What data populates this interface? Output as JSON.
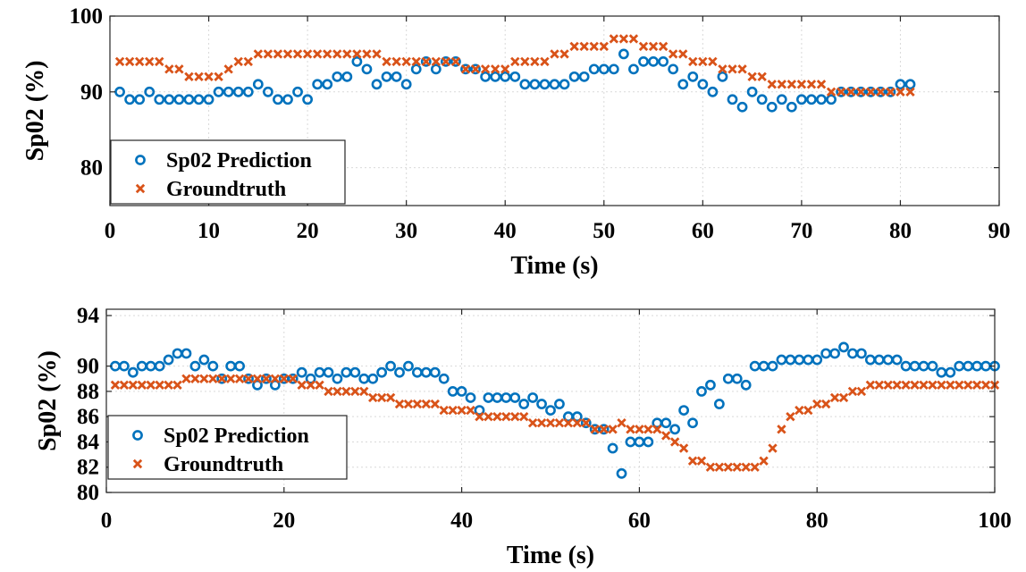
{
  "colors": {
    "prediction": "#0072BD",
    "groundtruth": "#D95319"
  },
  "chart_data": [
    {
      "type": "scatter",
      "xlabel": "Time (s)",
      "ylabel": "Sp02 (%)",
      "xlim": [
        0,
        90
      ],
      "ylim": [
        75,
        100
      ],
      "xticks": [
        0,
        10,
        20,
        30,
        40,
        50,
        60,
        70,
        80,
        90
      ],
      "yticks": [
        80,
        90,
        100
      ],
      "grid": true,
      "legend": "bottom-left",
      "series": [
        {
          "name": "Sp02 Prediction",
          "marker": "circle",
          "x": [
            1,
            2,
            3,
            4,
            5,
            6,
            7,
            8,
            9,
            10,
            11,
            12,
            13,
            14,
            15,
            16,
            17,
            18,
            19,
            20,
            21,
            22,
            23,
            24,
            25,
            26,
            27,
            28,
            29,
            30,
            31,
            32,
            33,
            34,
            35,
            36,
            37,
            38,
            39,
            40,
            41,
            42,
            43,
            44,
            45,
            46,
            47,
            48,
            49,
            50,
            51,
            52,
            53,
            54,
            55,
            56,
            57,
            58,
            59,
            60,
            61,
            62,
            63,
            64,
            65,
            66,
            67,
            68,
            69,
            70,
            71,
            72,
            73,
            74,
            75,
            76,
            77,
            78,
            79,
            80,
            81
          ],
          "y": [
            90,
            89,
            89,
            90,
            89,
            89,
            89,
            89,
            89,
            89,
            90,
            90,
            90,
            90,
            91,
            90,
            89,
            89,
            90,
            89,
            91,
            91,
            92,
            92,
            94,
            93,
            91,
            92,
            92,
            91,
            93,
            94,
            93,
            94,
            94,
            93,
            93,
            92,
            92,
            92,
            92,
            91,
            91,
            91,
            91,
            91,
            92,
            92,
            93,
            93,
            93,
            95,
            93,
            94,
            94,
            94,
            93,
            91,
            92,
            91,
            90,
            92,
            89,
            88,
            90,
            89,
            88,
            89,
            88,
            89,
            89,
            89,
            89,
            90,
            90,
            90,
            90,
            90,
            90,
            91,
            91
          ]
        },
        {
          "name": "Groundtruth",
          "marker": "x",
          "x": [
            1,
            2,
            3,
            4,
            5,
            6,
            7,
            8,
            9,
            10,
            11,
            12,
            13,
            14,
            15,
            16,
            17,
            18,
            19,
            20,
            21,
            22,
            23,
            24,
            25,
            26,
            27,
            28,
            29,
            30,
            31,
            32,
            33,
            34,
            35,
            36,
            37,
            38,
            39,
            40,
            41,
            42,
            43,
            44,
            45,
            46,
            47,
            48,
            49,
            50,
            51,
            52,
            53,
            54,
            55,
            56,
            57,
            58,
            59,
            60,
            61,
            62,
            63,
            64,
            65,
            66,
            67,
            68,
            69,
            70,
            71,
            72,
            73,
            74,
            75,
            76,
            77,
            78,
            79,
            80,
            81
          ],
          "y": [
            94,
            94,
            94,
            94,
            94,
            93,
            93,
            92,
            92,
            92,
            92,
            93,
            94,
            94,
            95,
            95,
            95,
            95,
            95,
            95,
            95,
            95,
            95,
            95,
            95,
            95,
            95,
            94,
            94,
            94,
            94,
            94,
            94,
            94,
            94,
            93,
            93,
            93,
            93,
            93,
            94,
            94,
            94,
            94,
            95,
            95,
            96,
            96,
            96,
            96,
            97,
            97,
            97,
            96,
            96,
            96,
            95,
            95,
            94,
            94,
            94,
            93,
            93,
            93,
            92,
            92,
            91,
            91,
            91,
            91,
            91,
            91,
            90,
            90,
            90,
            90,
            90,
            90,
            90,
            90,
            90
          ]
        }
      ]
    },
    {
      "type": "scatter",
      "xlabel": "Time (s)",
      "ylabel": "Sp02 (%)",
      "xlim": [
        0,
        100
      ],
      "ylim": [
        80,
        94.5
      ],
      "xticks": [
        0,
        20,
        40,
        60,
        80,
        100
      ],
      "yticks": [
        80,
        82,
        84,
        86,
        88,
        90,
        94
      ],
      "grid": true,
      "legend": "bottom-left",
      "series": [
        {
          "name": "Sp02 Prediction",
          "marker": "circle",
          "x": [
            1,
            2,
            3,
            4,
            5,
            6,
            7,
            8,
            9,
            10,
            11,
            12,
            13,
            14,
            15,
            16,
            17,
            18,
            19,
            20,
            21,
            22,
            23,
            24,
            25,
            26,
            27,
            28,
            29,
            30,
            31,
            32,
            33,
            34,
            35,
            36,
            37,
            38,
            39,
            40,
            41,
            42,
            43,
            44,
            45,
            46,
            47,
            48,
            49,
            50,
            51,
            52,
            53,
            54,
            55,
            56,
            57,
            58,
            59,
            60,
            61,
            62,
            63,
            64,
            65,
            66,
            67,
            68,
            69,
            70,
            71,
            72,
            73,
            74,
            75,
            76,
            77,
            78,
            79,
            80,
            81,
            82,
            83,
            84,
            85,
            86,
            87,
            88,
            89,
            90,
            91,
            92,
            93,
            94,
            95,
            96,
            97,
            98,
            99,
            100
          ],
          "y": [
            90,
            90,
            89.5,
            90,
            90,
            90,
            90.5,
            91,
            91,
            90,
            90.5,
            90,
            89,
            90,
            90,
            89,
            88.5,
            89,
            88.5,
            89,
            89,
            89.5,
            89,
            89.5,
            89.5,
            89,
            89.5,
            89.5,
            89,
            89,
            89.5,
            90,
            89.5,
            90,
            89.5,
            89.5,
            89.5,
            89,
            88,
            88,
            87.5,
            86.5,
            87.5,
            87.5,
            87.5,
            87.5,
            87,
            87.5,
            87,
            86.5,
            87,
            86,
            86,
            85.5,
            85,
            85,
            83.5,
            81.5,
            84,
            84,
            84,
            85.5,
            85.5,
            85,
            86.5,
            85.5,
            88,
            88.5,
            87,
            89,
            89,
            88.5,
            90,
            90,
            90,
            90.5,
            90.5,
            90.5,
            90.5,
            90.5,
            91,
            91,
            91.5,
            91,
            91,
            90.5,
            90.5,
            90.5,
            90.5,
            90,
            90,
            90,
            90,
            89.5,
            89.5,
            90,
            90,
            90,
            90,
            90
          ]
        },
        {
          "name": "Groundtruth",
          "marker": "x",
          "x": [
            1,
            2,
            3,
            4,
            5,
            6,
            7,
            8,
            9,
            10,
            11,
            12,
            13,
            14,
            15,
            16,
            17,
            18,
            19,
            20,
            21,
            22,
            23,
            24,
            25,
            26,
            27,
            28,
            29,
            30,
            31,
            32,
            33,
            34,
            35,
            36,
            37,
            38,
            39,
            40,
            41,
            42,
            43,
            44,
            45,
            46,
            47,
            48,
            49,
            50,
            51,
            52,
            53,
            54,
            55,
            56,
            57,
            58,
            59,
            60,
            61,
            62,
            63,
            64,
            65,
            66,
            67,
            68,
            69,
            70,
            71,
            72,
            73,
            74,
            75,
            76,
            77,
            78,
            79,
            80,
            81,
            82,
            83,
            84,
            85,
            86,
            87,
            88,
            89,
            90,
            91,
            92,
            93,
            94,
            95,
            96,
            97,
            98,
            99,
            100
          ],
          "y": [
            88.5,
            88.5,
            88.5,
            88.5,
            88.5,
            88.5,
            88.5,
            88.5,
            89,
            89,
            89,
            89,
            89,
            89,
            89,
            89,
            89,
            89,
            89,
            89,
            89,
            88.5,
            88.5,
            88.5,
            88,
            88,
            88,
            88,
            88,
            87.5,
            87.5,
            87.5,
            87,
            87,
            87,
            87,
            87,
            86.5,
            86.5,
            86.5,
            86.5,
            86,
            86,
            86,
            86,
            86,
            86,
            85.5,
            85.5,
            85.5,
            85.5,
            85.5,
            85.5,
            85.5,
            85,
            85,
            85,
            85.5,
            85,
            85,
            85,
            85,
            84.5,
            84,
            83.5,
            82.5,
            82.5,
            82,
            82,
            82,
            82,
            82,
            82,
            82.5,
            83.5,
            85,
            86,
            86.5,
            86.5,
            87,
            87,
            87.5,
            87.5,
            88,
            88,
            88.5,
            88.5,
            88.5,
            88.5,
            88.5,
            88.5,
            88.5,
            88.5,
            88.5,
            88.5,
            88.5,
            88.5,
            88.5,
            88.5,
            88.5
          ]
        }
      ]
    }
  ]
}
